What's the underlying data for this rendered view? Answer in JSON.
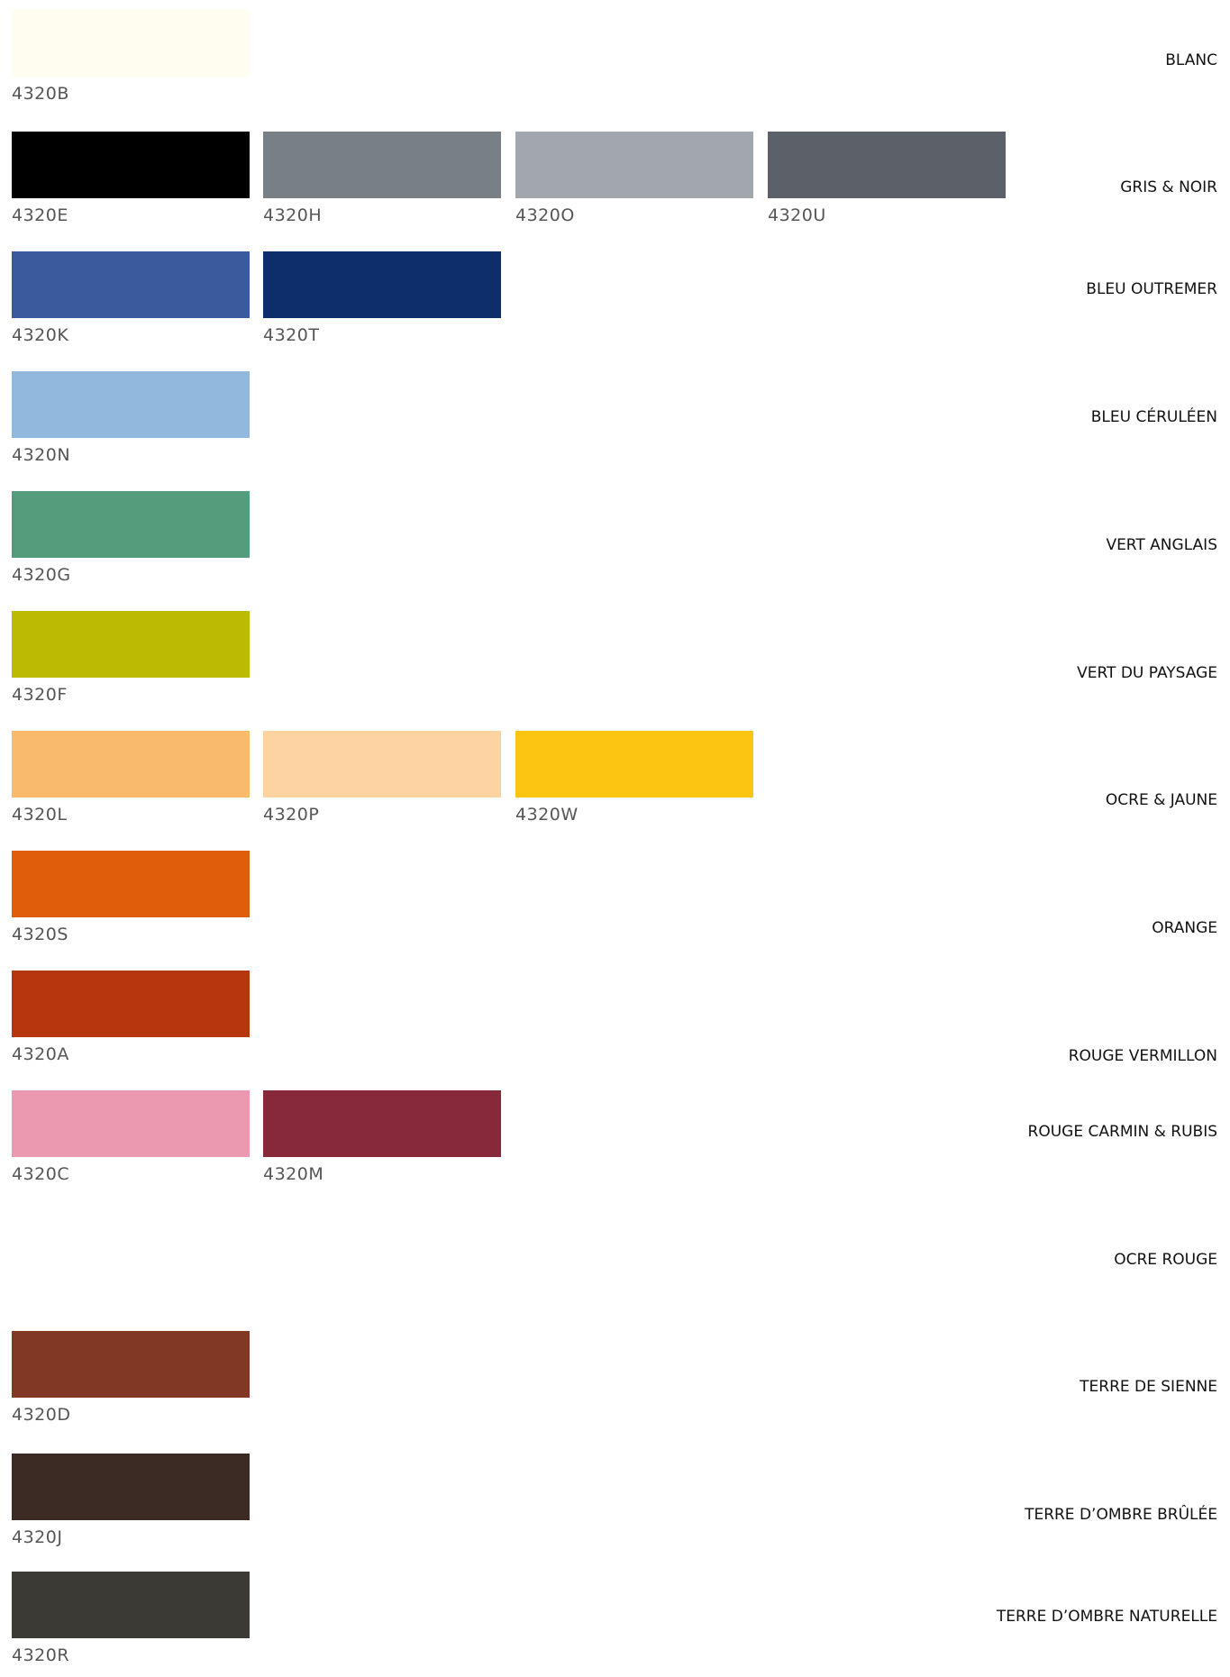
{
  "swatches": [
    {
      "code": "4320B",
      "color": "#fffdf0"
    },
    {
      "code": "4320E",
      "color": "#000000"
    },
    {
      "code": "4320H",
      "color": "#787f85"
    },
    {
      "code": "4320O",
      "color": "#a1a7ac"
    },
    {
      "code": "4320U",
      "color": "#5b6069"
    },
    {
      "code": "4320K",
      "color": "#3b5a9e"
    },
    {
      "code": "4320T",
      "color": "#0e2d6b"
    },
    {
      "code": "4320N",
      "color": "#91b9de"
    },
    {
      "code": "4320G",
      "color": "#559c7d"
    },
    {
      "code": "4320F",
      "color": "#bcba02"
    },
    {
      "code": "4320L",
      "color": "#f9bb6b"
    },
    {
      "code": "4320P",
      "color": "#fcd3a1"
    },
    {
      "code": "4320W",
      "color": "#fcc512"
    },
    {
      "code": "4320S",
      "color": "#e05d0c"
    },
    {
      "code": "4320A",
      "color": "#b6360d"
    },
    {
      "code": "4320C",
      "color": "#eb99b1"
    },
    {
      "code": "4320M",
      "color": "#87283b"
    },
    {
      "code": "4320D",
      "color": "#813824"
    },
    {
      "code": "4320J",
      "color": "#3c2b25"
    },
    {
      "code": "4320R",
      "color": "#3b3a35"
    }
  ],
  "categories": [
    "BLANC",
    "GRIS & NOIR",
    "BLEU OUTREMER",
    "BLEU CÉRULÉEN",
    "VERT ANGLAIS",
    "VERT DU PAYSAGE",
    "OCRE & JAUNE",
    "ORANGE",
    "ROUGE VERMILLON",
    "ROUGE  CARMIN & RUBIS",
    "OCRE ROUGE",
    "TERRE DE SIENNE",
    "TERRE D’OMBRE BRÛLÉE",
    "TERRE D’OMBRE NATURELLE"
  ]
}
